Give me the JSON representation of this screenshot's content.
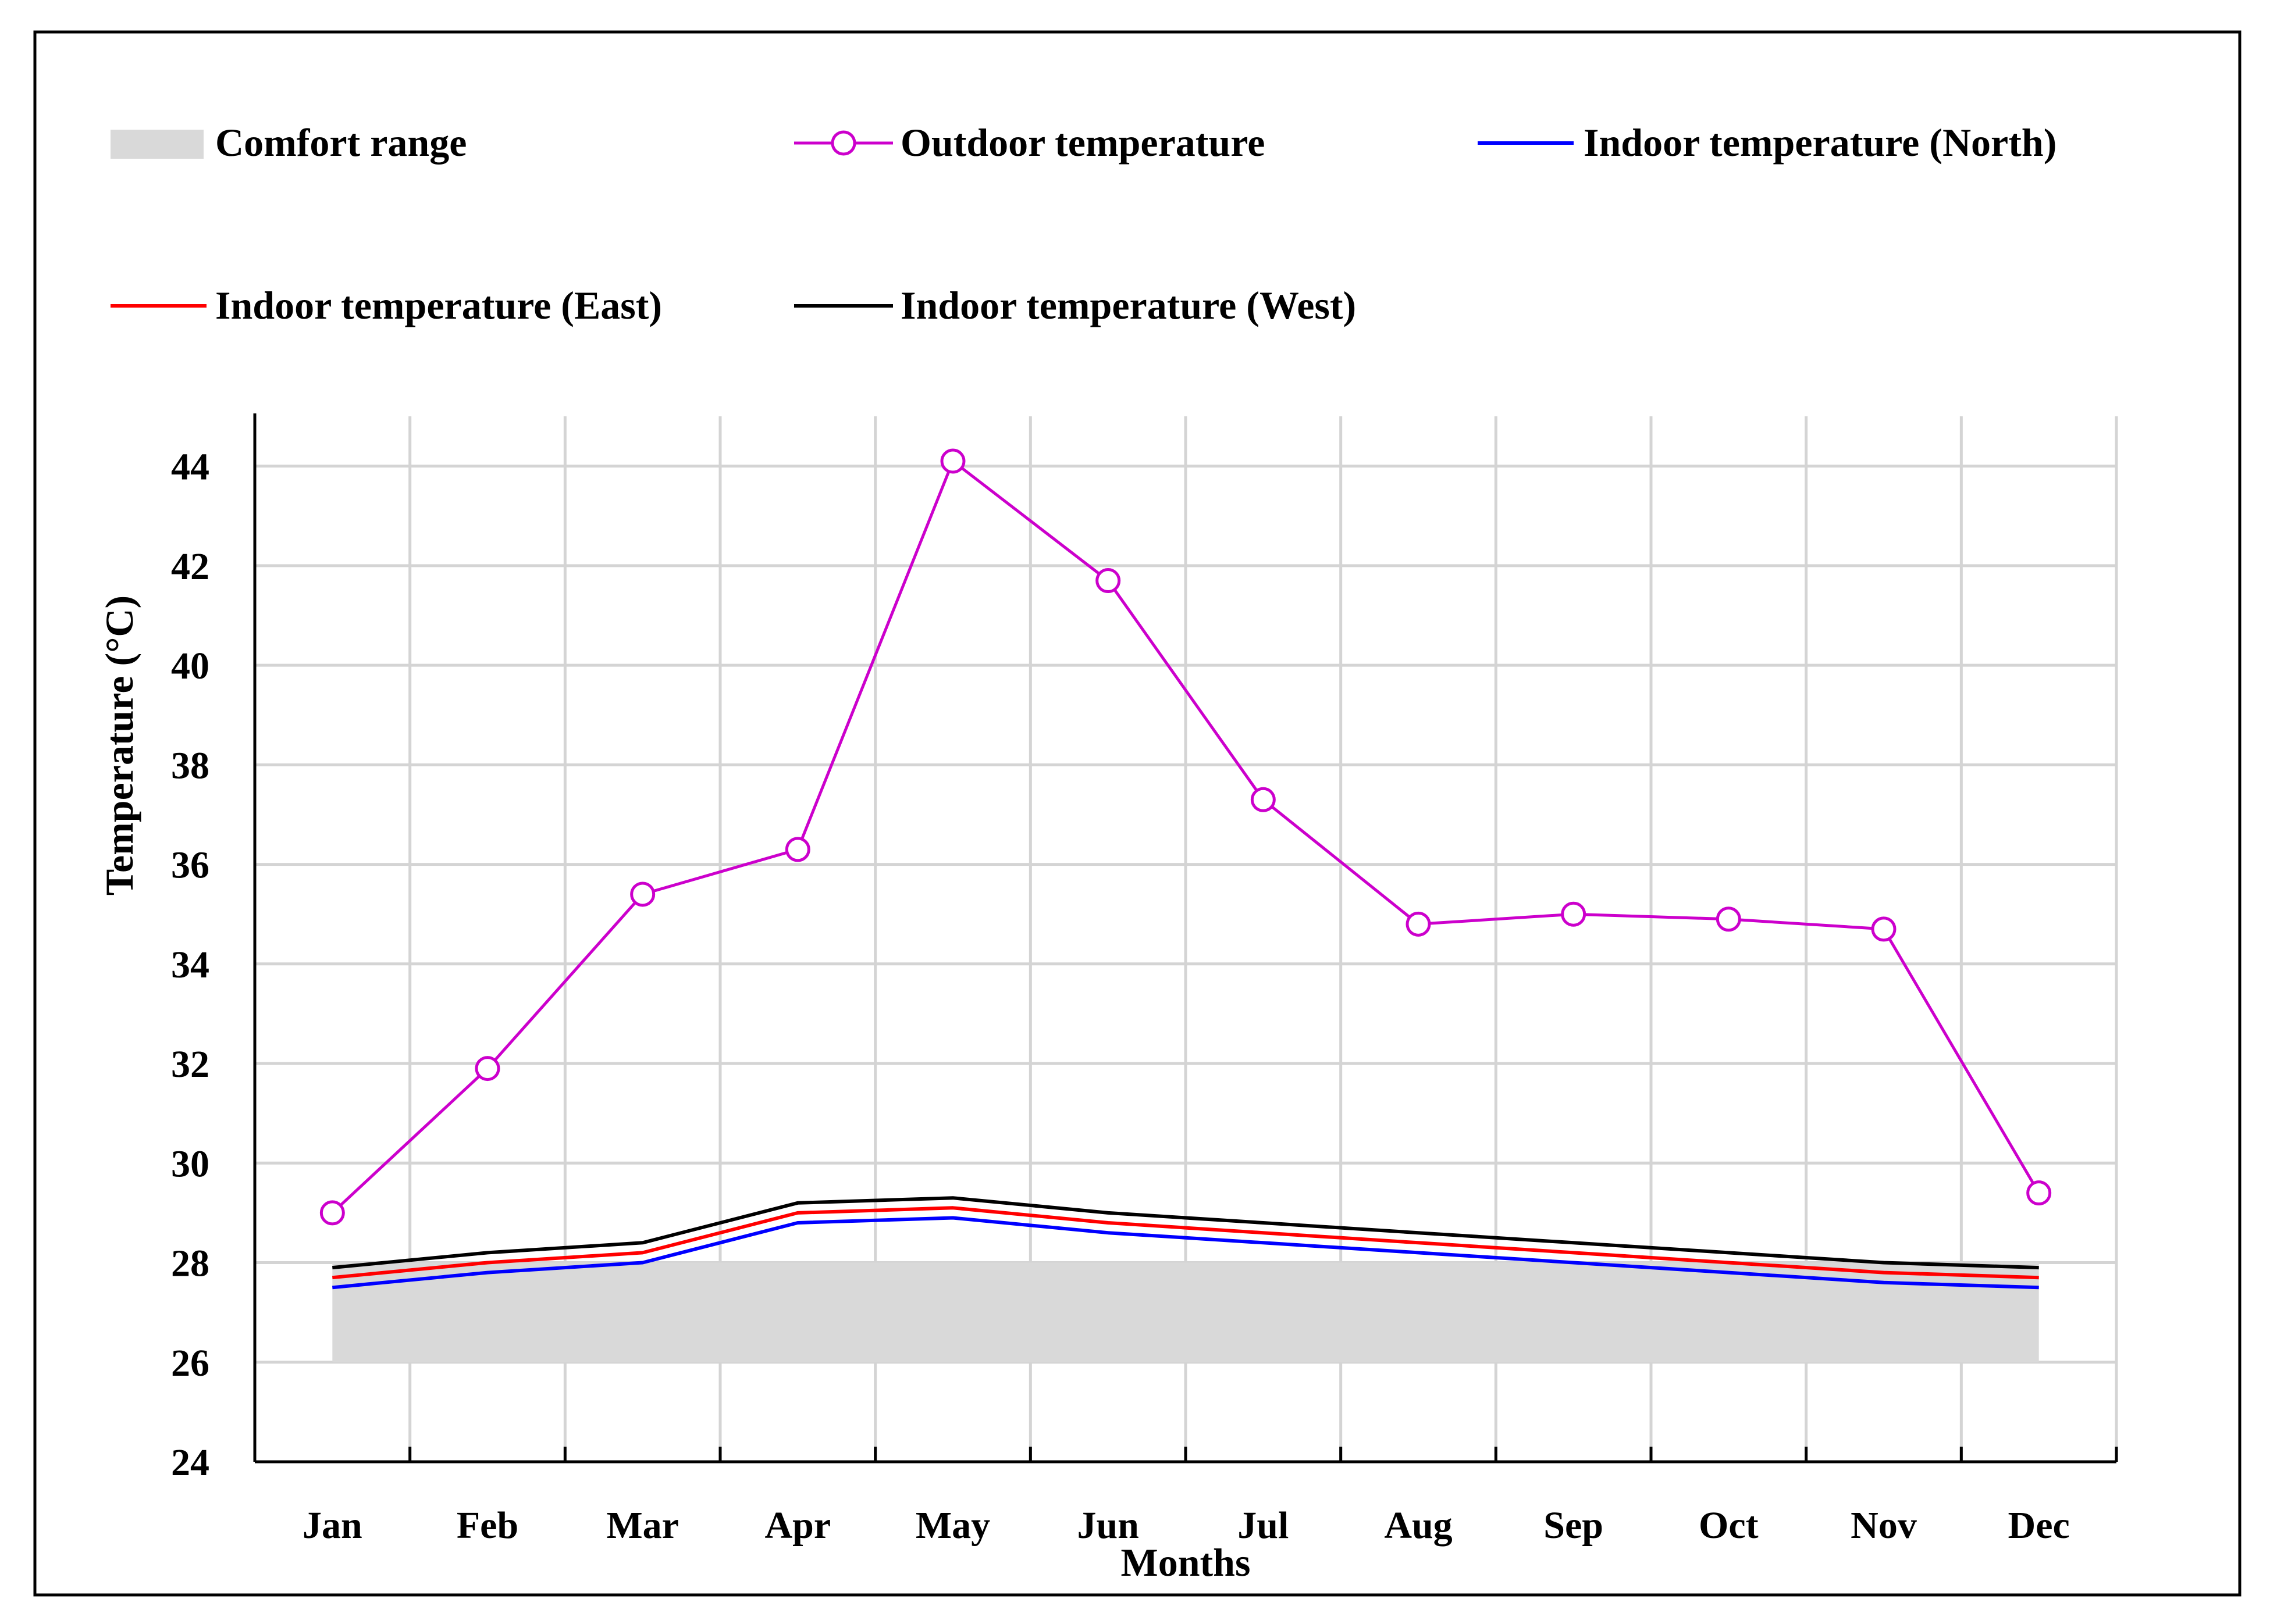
{
  "chart_data": {
    "type": "line",
    "title": "",
    "xlabel": "Months",
    "ylabel": "Temperature (°C)",
    "ylim": [
      24,
      45
    ],
    "yticks": [
      24,
      26,
      28,
      30,
      32,
      34,
      36,
      38,
      40,
      42,
      44
    ],
    "categories": [
      "Jan",
      "Feb",
      "Mar",
      "Apr",
      "May",
      "Jun",
      "Jul",
      "Aug",
      "Sep",
      "Oct",
      "Nov",
      "Dec"
    ],
    "grid": true,
    "legend_position": "top",
    "comfort_range": {
      "name": "Comfort range",
      "low": 26,
      "high": 28,
      "color": "#d9d9d9"
    },
    "series": [
      {
        "name": "Outdoor temperature",
        "color": "#cc00cc",
        "marker": "circle",
        "values": [
          29.0,
          31.9,
          35.4,
          36.3,
          44.1,
          41.7,
          37.3,
          34.8,
          35.0,
          34.9,
          34.7,
          29.4
        ]
      },
      {
        "name": "Indoor temperature (North)",
        "color": "#0000ff",
        "marker": "none",
        "values": [
          27.5,
          27.8,
          28.0,
          28.8,
          28.9,
          28.6,
          28.4,
          28.2,
          28.0,
          27.8,
          27.6,
          27.5
        ]
      },
      {
        "name": "Indoor temperature (East)",
        "color": "#ff0000",
        "marker": "none",
        "values": [
          27.7,
          28.0,
          28.2,
          29.0,
          29.1,
          28.8,
          28.6,
          28.4,
          28.2,
          28.0,
          27.8,
          27.7
        ]
      },
      {
        "name": "Indoor temperature (West)",
        "color": "#000000",
        "marker": "none",
        "values": [
          27.9,
          28.2,
          28.4,
          29.2,
          29.3,
          29.0,
          28.8,
          28.6,
          28.4,
          28.2,
          28.0,
          27.9
        ]
      }
    ]
  }
}
